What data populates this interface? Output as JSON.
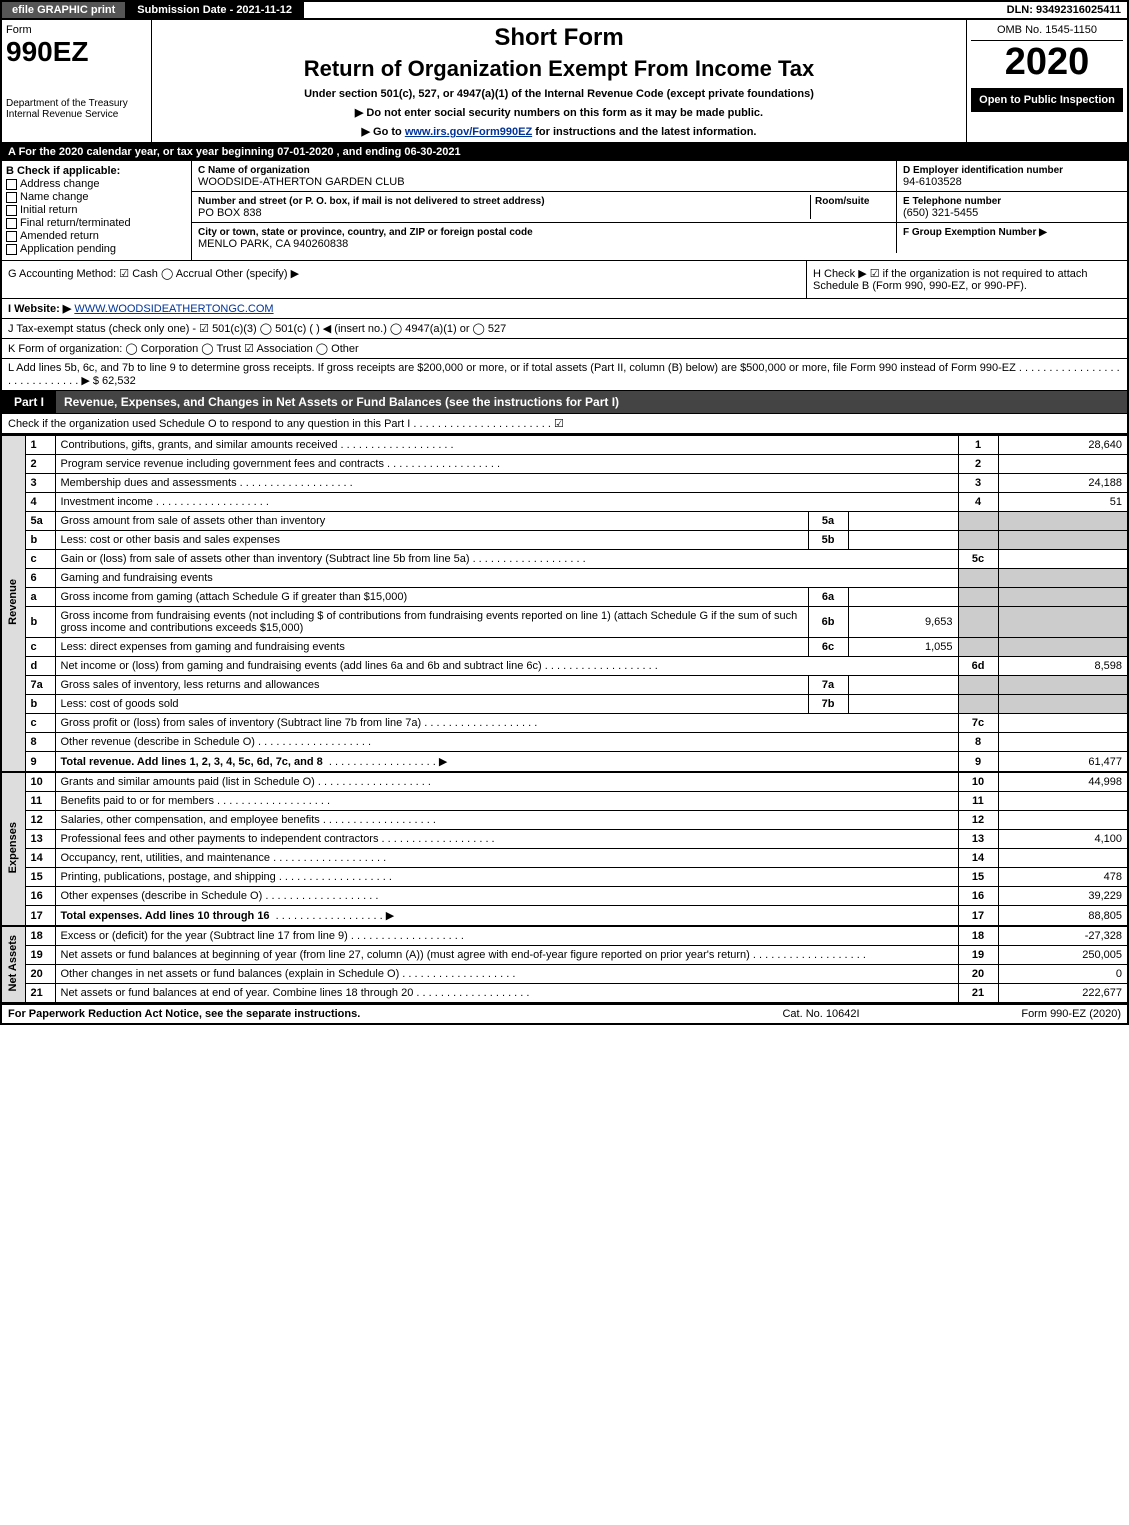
{
  "topbar": {
    "efile": "efile GRAPHIC print",
    "submission_label": "Submission Date - 2021-11-12",
    "dln": "DLN: 93492316025411"
  },
  "header": {
    "form_label": "Form",
    "form_number": "990EZ",
    "dept": "Department of the Treasury",
    "irs": "Internal Revenue Service",
    "short_form": "Short Form",
    "return_title": "Return of Organization Exempt From Income Tax",
    "subtitle": "Under section 501(c), 527, or 4947(a)(1) of the Internal Revenue Code (except private foundations)",
    "note1": "▶ Do not enter social security numbers on this form as it may be made public.",
    "note2_prefix": "▶ Go to ",
    "note2_link": "www.irs.gov/Form990EZ",
    "note2_suffix": " for instructions and the latest information.",
    "omb": "OMB No. 1545-1150",
    "year": "2020",
    "open": "Open to Public Inspection"
  },
  "sectionA": "A For the 2020 calendar year, or tax year beginning 07-01-2020 , and ending 06-30-2021",
  "sectionB": {
    "label": "B Check if applicable:",
    "opts": [
      "Address change",
      "Name change",
      "Initial return",
      "Final return/terminated",
      "Amended return",
      "Application pending"
    ]
  },
  "sectionC": {
    "c_label": "C Name of organization",
    "c_name": "WOODSIDE-ATHERTON GARDEN CLUB",
    "street_label": "Number and street (or P. O. box, if mail is not delivered to street address)",
    "room_label": "Room/suite",
    "street": "PO BOX 838",
    "city_label": "City or town, state or province, country, and ZIP or foreign postal code",
    "city": "MENLO PARK, CA  940260838"
  },
  "sectionD": {
    "d_label": "D Employer identification number",
    "d_val": "94-6103528",
    "e_label": "E Telephone number",
    "e_val": "(650) 321-5455",
    "f_label": "F Group Exemption Number  ▶",
    "f_val": ""
  },
  "lines": {
    "g": "G Accounting Method:  ☑ Cash  ◯ Accrual   Other (specify) ▶",
    "h": "H  Check ▶ ☑ if the organization is not required to attach Schedule B (Form 990, 990-EZ, or 990-PF).",
    "i_prefix": "I Website: ▶",
    "i_link": "WWW.WOODSIDEATHERTONGC.COM",
    "j": "J Tax-exempt status (check only one) -  ☑ 501(c)(3)  ◯ 501(c) (    ) ◀ (insert no.)  ◯ 4947(a)(1) or  ◯ 527",
    "k": "K Form of organization:   ◯ Corporation   ◯ Trust   ☑ Association   ◯ Other",
    "l": "L Add lines 5b, 6c, and 7b to line 9 to determine gross receipts. If gross receipts are $200,000 or more, or if total assets (Part II, column (B) below) are $500,000 or more, file Form 990 instead of Form 990-EZ  .  .  .  .  .  .  .  .  .  .  .  .  .  .  .  .  .  .  .  .  .  .  .  .  .  .  .  .  .  ▶ $ 62,532"
  },
  "part1": {
    "tab": "Part I",
    "title": "Revenue, Expenses, and Changes in Net Assets or Fund Balances (see the instructions for Part I)",
    "check_line": "Check if the organization used Schedule O to respond to any question in this Part I  .  .  .  .  .  .  .  .  .  .  .  .  .  .  .  .  .  .  .  .  .  .  .  ☑"
  },
  "revenue_label": "Revenue",
  "expenses_label": "Expenses",
  "netassets_label": "Net Assets",
  "table": {
    "rows": [
      {
        "n": "1",
        "desc": "Contributions, gifts, grants, and similar amounts received",
        "line": "1",
        "val": "28,640"
      },
      {
        "n": "2",
        "desc": "Program service revenue including government fees and contracts",
        "line": "2",
        "val": ""
      },
      {
        "n": "3",
        "desc": "Membership dues and assessments",
        "line": "3",
        "val": "24,188"
      },
      {
        "n": "4",
        "desc": "Investment income",
        "line": "4",
        "val": "51"
      },
      {
        "n": "5a",
        "desc": "Gross amount from sale of assets other than inventory",
        "sub": "5a",
        "subval": "",
        "grey": true
      },
      {
        "n": "b",
        "desc": "Less: cost or other basis and sales expenses",
        "sub": "5b",
        "subval": "",
        "grey": true
      },
      {
        "n": "c",
        "desc": "Gain or (loss) from sale of assets other than inventory (Subtract line 5b from line 5a)",
        "line": "5c",
        "val": ""
      },
      {
        "n": "6",
        "desc": "Gaming and fundraising events",
        "grey": true,
        "noval": true
      },
      {
        "n": "a",
        "desc": "Gross income from gaming (attach Schedule G if greater than $15,000)",
        "sub": "6a",
        "subval": "",
        "grey": true
      },
      {
        "n": "b",
        "desc": "Gross income from fundraising events (not including $                             of contributions from fundraising events reported on line 1) (attach Schedule G if the sum of such gross income and contributions exceeds $15,000)",
        "sub": "6b",
        "subval": "9,653",
        "grey": true
      },
      {
        "n": "c",
        "desc": "Less: direct expenses from gaming and fundraising events",
        "sub": "6c",
        "subval": "1,055",
        "grey": true
      },
      {
        "n": "d",
        "desc": "Net income or (loss) from gaming and fundraising events (add lines 6a and 6b and subtract line 6c)",
        "line": "6d",
        "val": "8,598"
      },
      {
        "n": "7a",
        "desc": "Gross sales of inventory, less returns and allowances",
        "sub": "7a",
        "subval": "",
        "grey": true
      },
      {
        "n": "b",
        "desc": "Less: cost of goods sold",
        "sub": "7b",
        "subval": "",
        "grey": true
      },
      {
        "n": "c",
        "desc": "Gross profit or (loss) from sales of inventory (Subtract line 7b from line 7a)",
        "line": "7c",
        "val": ""
      },
      {
        "n": "8",
        "desc": "Other revenue (describe in Schedule O)",
        "line": "8",
        "val": ""
      },
      {
        "n": "9",
        "desc": "Total revenue. Add lines 1, 2, 3, 4, 5c, 6d, 7c, and 8",
        "line": "9",
        "val": "61,477",
        "bold": true,
        "arrow": true
      }
    ],
    "exp_rows": [
      {
        "n": "10",
        "desc": "Grants and similar amounts paid (list in Schedule O)",
        "line": "10",
        "val": "44,998"
      },
      {
        "n": "11",
        "desc": "Benefits paid to or for members",
        "line": "11",
        "val": ""
      },
      {
        "n": "12",
        "desc": "Salaries, other compensation, and employee benefits",
        "line": "12",
        "val": ""
      },
      {
        "n": "13",
        "desc": "Professional fees and other payments to independent contractors",
        "line": "13",
        "val": "4,100"
      },
      {
        "n": "14",
        "desc": "Occupancy, rent, utilities, and maintenance",
        "line": "14",
        "val": ""
      },
      {
        "n": "15",
        "desc": "Printing, publications, postage, and shipping",
        "line": "15",
        "val": "478"
      },
      {
        "n": "16",
        "desc": "Other expenses (describe in Schedule O)",
        "line": "16",
        "val": "39,229"
      },
      {
        "n": "17",
        "desc": "Total expenses. Add lines 10 through 16",
        "line": "17",
        "val": "88,805",
        "bold": true,
        "arrow": true
      }
    ],
    "na_rows": [
      {
        "n": "18",
        "desc": "Excess or (deficit) for the year (Subtract line 17 from line 9)",
        "line": "18",
        "val": "-27,328"
      },
      {
        "n": "19",
        "desc": "Net assets or fund balances at beginning of year (from line 27, column (A)) (must agree with end-of-year figure reported on prior year's return)",
        "line": "19",
        "val": "250,005"
      },
      {
        "n": "20",
        "desc": "Other changes in net assets or fund balances (explain in Schedule O)",
        "line": "20",
        "val": "0"
      },
      {
        "n": "21",
        "desc": "Net assets or fund balances at end of year. Combine lines 18 through 20",
        "line": "21",
        "val": "222,677"
      }
    ]
  },
  "footer": {
    "left": "For Paperwork Reduction Act Notice, see the separate instructions.",
    "mid": "Cat. No. 10642I",
    "right": "Form 990-EZ (2020)"
  }
}
